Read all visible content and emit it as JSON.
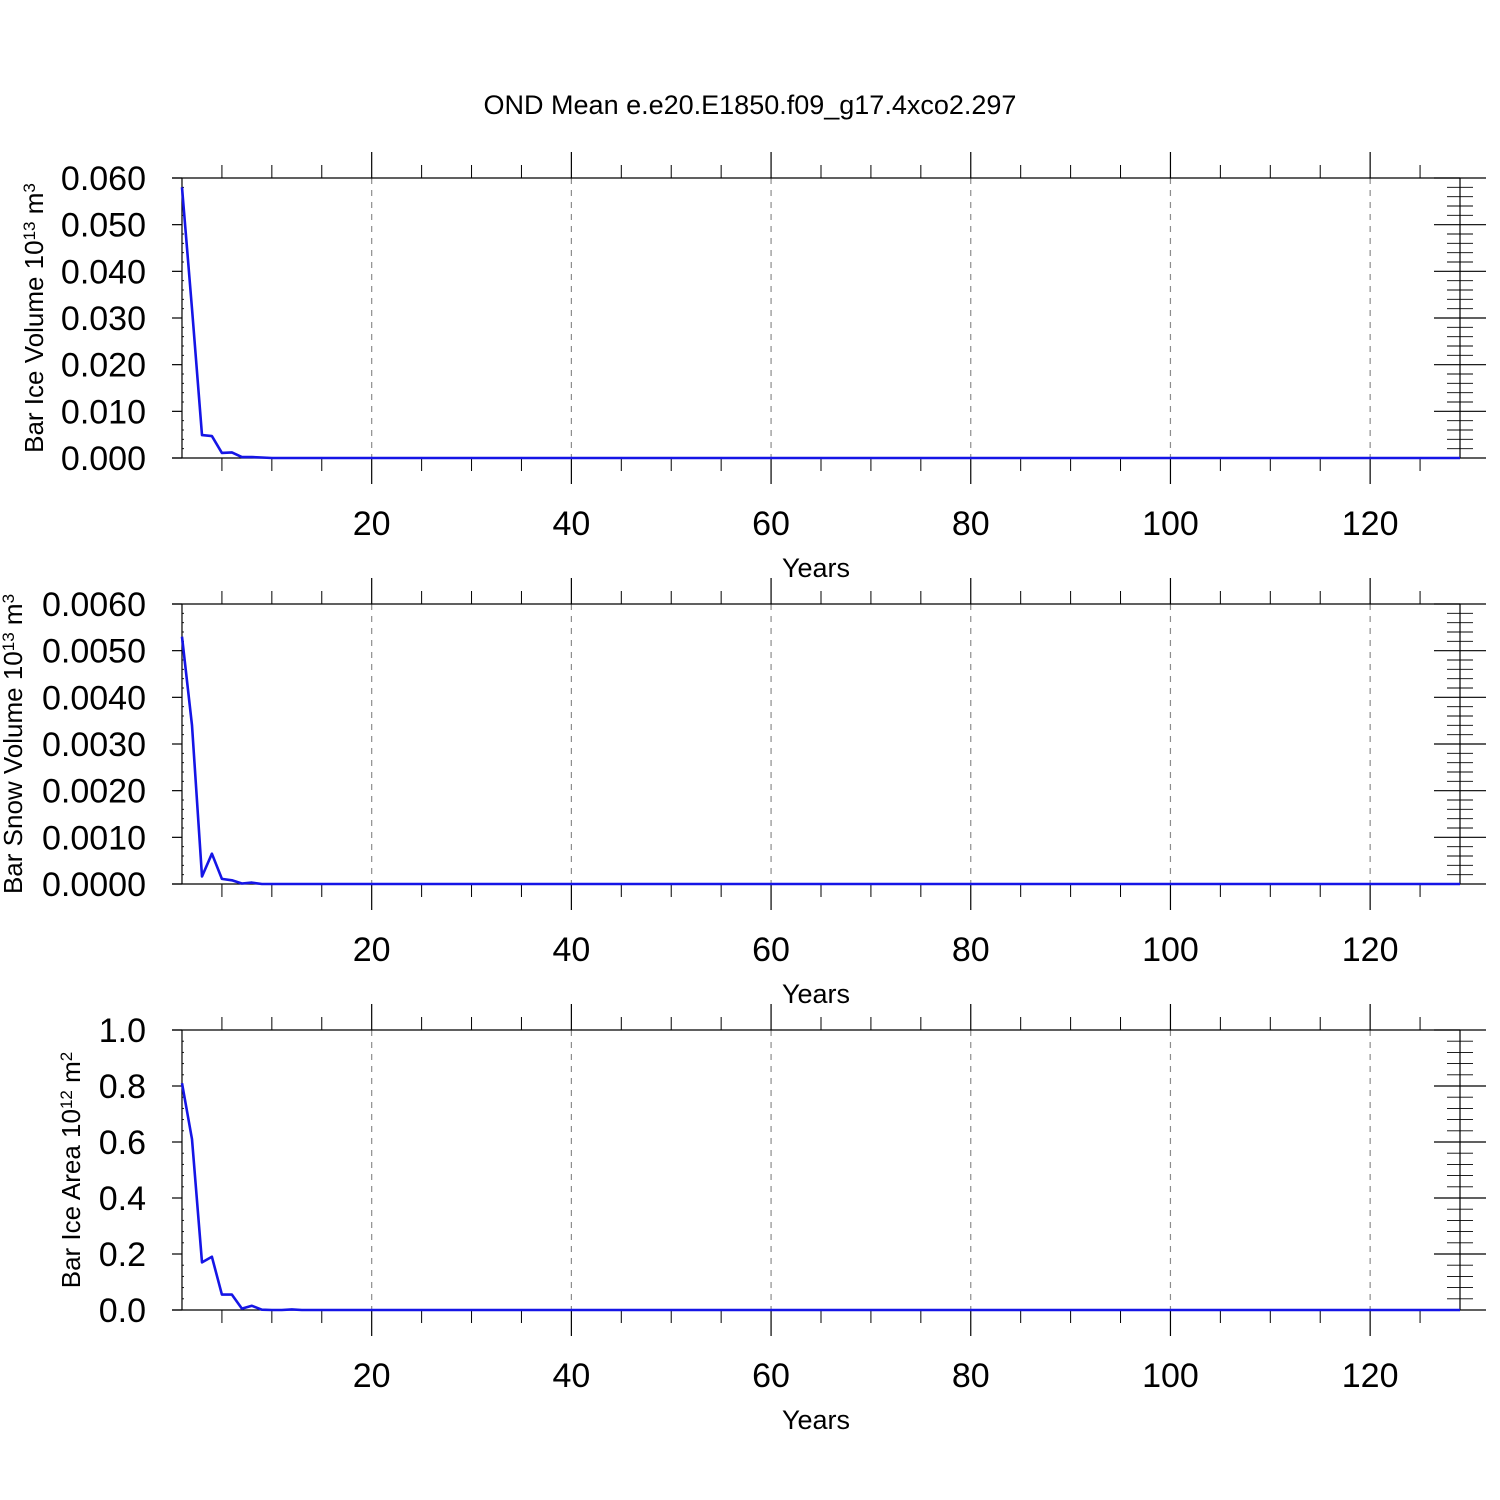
{
  "figure": {
    "title": "OND Mean e.e20.E1850.f09_g17.4xco2.297"
  },
  "colors": {
    "line": "#1515e6",
    "axis": "#000000",
    "grid": "#8c8c8c",
    "background": "#ffffff"
  },
  "chart_data": [
    {
      "type": "line",
      "title": "",
      "ylabel": {
        "prefix": "Bar Ice Volume 10",
        "exponent": "13",
        "unit": " m",
        "unit_exponent": "3"
      },
      "xlabel": "Years",
      "xlim": [
        0,
        129
      ],
      "ylim": [
        0,
        0.06
      ],
      "xticks": [
        20,
        40,
        60,
        80,
        100,
        120
      ],
      "xtick_labels": [
        "20",
        "40",
        "60",
        "80",
        "100",
        "120"
      ],
      "yticks": [
        0,
        0.01,
        0.02,
        0.03,
        0.04,
        0.05,
        0.06
      ],
      "ytick_labels": [
        "0.000",
        "0.010",
        "0.020",
        "0.030",
        "0.040",
        "0.050",
        "0.060"
      ],
      "x_minor_step": 5,
      "y_minor_step": 0.002,
      "grid": "vertical-dashed",
      "series": [
        {
          "x_start": 1,
          "x_step": 1,
          "leading_values": [
            0.058,
            0.032,
            0.0049,
            0.0047,
            0.0011,
            0.0012,
            0.0002,
            0.0002,
            0.0001,
            0.0,
            0.0,
            0.0
          ],
          "tail_value": 0.0
        }
      ]
    },
    {
      "type": "line",
      "title": "",
      "ylabel": {
        "prefix": "Bar Snow Volume 10",
        "exponent": "13",
        "unit": " m",
        "unit_exponent": "3"
      },
      "xlabel": "Years",
      "xlim": [
        0,
        129
      ],
      "ylim": [
        0,
        0.006
      ],
      "xticks": [
        20,
        40,
        60,
        80,
        100,
        120
      ],
      "xtick_labels": [
        "20",
        "40",
        "60",
        "80",
        "100",
        "120"
      ],
      "yticks": [
        0,
        0.001,
        0.002,
        0.003,
        0.004,
        0.005,
        0.006
      ],
      "ytick_labels": [
        "0.0000",
        "0.0010",
        "0.0020",
        "0.0030",
        "0.0040",
        "0.0050",
        "0.0060"
      ],
      "x_minor_step": 5,
      "y_minor_step": 0.0002,
      "grid": "vertical-dashed",
      "series": [
        {
          "x_start": 1,
          "x_step": 1,
          "leading_values": [
            0.0053,
            0.0034,
            0.00016,
            0.00065,
            0.00011,
            8e-05,
            1e-05,
            3e-05,
            0.0,
            0.0,
            0.0,
            0.0
          ],
          "tail_value": 0.0
        }
      ]
    },
    {
      "type": "line",
      "title": "",
      "ylabel": {
        "prefix": "Bar Ice Area 10",
        "exponent": "12",
        "unit": " m",
        "unit_exponent": "2"
      },
      "xlabel": "Years",
      "xlim": [
        0,
        129
      ],
      "ylim": [
        0,
        1.0
      ],
      "xticks": [
        20,
        40,
        60,
        80,
        100,
        120
      ],
      "xtick_labels": [
        "20",
        "40",
        "60",
        "80",
        "100",
        "120"
      ],
      "yticks": [
        0,
        0.2,
        0.4,
        0.6,
        0.8,
        1.0
      ],
      "ytick_labels": [
        "0.0",
        "0.2",
        "0.4",
        "0.6",
        "0.8",
        "1.0"
      ],
      "x_minor_step": 5,
      "y_minor_step": 0.04,
      "grid": "vertical-dashed",
      "series": [
        {
          "x_start": 1,
          "x_step": 1,
          "leading_values": [
            0.81,
            0.61,
            0.17,
            0.19,
            0.055,
            0.055,
            0.005,
            0.015,
            0.001,
            0.0,
            0.0,
            0.002,
            0.0
          ],
          "tail_value": 0.0
        }
      ]
    }
  ]
}
